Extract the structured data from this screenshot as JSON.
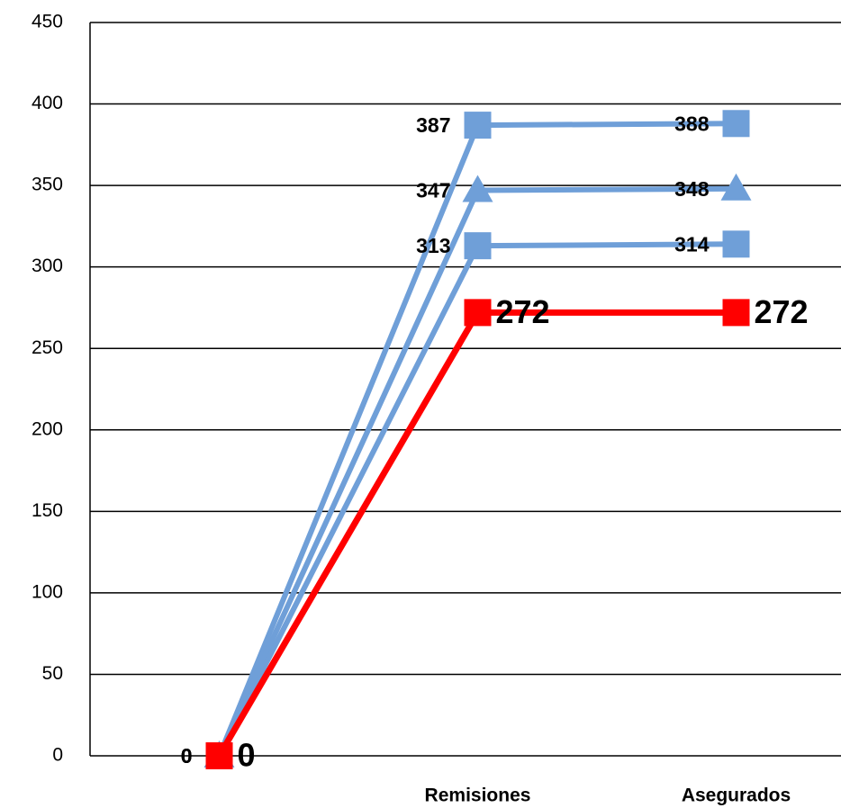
{
  "chart_data": {
    "type": "line",
    "categories": [
      null,
      "Remisiones",
      "Asegurados"
    ],
    "series": [
      {
        "color": "#6f9fd8",
        "marker": "square",
        "values": [
          0,
          387,
          388
        ]
      },
      {
        "color": "#6f9fd8",
        "marker": "triangle",
        "values": [
          0,
          347,
          348
        ]
      },
      {
        "color": "#6f9fd8",
        "marker": "square",
        "values": [
          0,
          313,
          314
        ]
      },
      {
        "color": "#ff0000",
        "marker": "square",
        "values": [
          0,
          272,
          272
        ]
      }
    ],
    "ylim": [
      0,
      450
    ],
    "yticks": [
      0,
      50,
      100,
      150,
      200,
      250,
      300,
      350,
      400,
      450
    ],
    "grid": true
  }
}
